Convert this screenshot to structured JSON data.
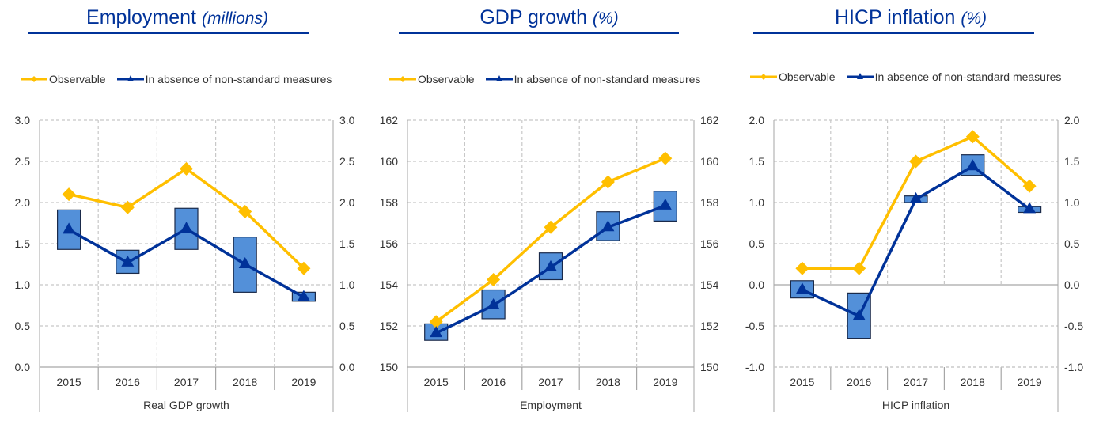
{
  "colors": {
    "observable": "#FFBF00",
    "counterfactual": "#003299",
    "range_box": "#5390D9",
    "title": "#003299",
    "grid": "#C8C8C8"
  },
  "legend": {
    "observable": "Observable",
    "counterfactual": "In absence of non-standard measures"
  },
  "chart_data": [
    {
      "type": "line",
      "title": "Employment",
      "title_unit": "(millions)",
      "xlabel": "Real GDP growth",
      "categories": [
        "2015",
        "2016",
        "2017",
        "2018",
        "2019"
      ],
      "ylim": [
        0.0,
        3.0
      ],
      "yticks": [
        "0.0",
        "0.5",
        "1.0",
        "1.5",
        "2.0",
        "2.5",
        "3.0"
      ],
      "ytick_values": [
        0.0,
        0.5,
        1.0,
        1.5,
        2.0,
        2.5,
        3.0
      ],
      "grid": true,
      "legend_position": "top",
      "series": [
        {
          "name": "Observable",
          "values": [
            2.1,
            1.94,
            2.41,
            1.89,
            1.2
          ]
        },
        {
          "name": "In absence of non-standard measures",
          "values": [
            1.67,
            1.27,
            1.68,
            1.25,
            0.85
          ]
        }
      ],
      "ranges": [
        [
          1.43,
          1.91
        ],
        [
          1.14,
          1.42
        ],
        [
          1.43,
          1.93
        ],
        [
          0.91,
          1.58
        ],
        [
          0.8,
          0.91
        ]
      ]
    },
    {
      "type": "line",
      "title": "GDP growth",
      "title_unit": "(%)",
      "xlabel": "Employment",
      "categories": [
        "2015",
        "2016",
        "2017",
        "2018",
        "2019"
      ],
      "ylim": [
        150,
        162
      ],
      "yticks": [
        "150",
        "152",
        "154",
        "156",
        "158",
        "160",
        "162"
      ],
      "ytick_values": [
        150,
        152,
        154,
        156,
        158,
        160,
        162
      ],
      "grid": true,
      "legend_position": "top",
      "series": [
        {
          "name": "Observable",
          "values": [
            152.2,
            154.25,
            156.8,
            159.0,
            160.15
          ]
        },
        {
          "name": "In absence of non-standard measures",
          "values": [
            151.65,
            153.0,
            154.85,
            156.8,
            157.85
          ]
        }
      ],
      "ranges": [
        [
          151.3,
          152.1
        ],
        [
          152.35,
          153.75
        ],
        [
          154.25,
          155.55
        ],
        [
          156.15,
          157.55
        ],
        [
          157.1,
          158.55
        ]
      ]
    },
    {
      "type": "line",
      "title": "HICP inflation",
      "title_unit": "(%)",
      "xlabel": "HICP inflation",
      "categories": [
        "2015",
        "2016",
        "2017",
        "2018",
        "2019"
      ],
      "ylim": [
        -1.0,
        2.0
      ],
      "yticks": [
        "-1.0",
        "-0.5",
        "0.0",
        "0.5",
        "1.0",
        "1.5",
        "2.0"
      ],
      "ytick_values": [
        -1.0,
        -0.5,
        0.0,
        0.5,
        1.0,
        1.5,
        2.0
      ],
      "grid": true,
      "legend_position": "top",
      "series": [
        {
          "name": "Observable",
          "values": [
            0.2,
            0.2,
            1.5,
            1.8,
            1.2
          ]
        },
        {
          "name": "In absence of non-standard measures",
          "values": [
            -0.06,
            -0.38,
            1.04,
            1.44,
            0.92
          ]
        }
      ],
      "ranges": [
        [
          -0.16,
          0.05
        ],
        [
          -0.65,
          -0.1
        ],
        [
          1.0,
          1.08
        ],
        [
          1.33,
          1.58
        ],
        [
          0.88,
          0.95
        ]
      ]
    }
  ]
}
